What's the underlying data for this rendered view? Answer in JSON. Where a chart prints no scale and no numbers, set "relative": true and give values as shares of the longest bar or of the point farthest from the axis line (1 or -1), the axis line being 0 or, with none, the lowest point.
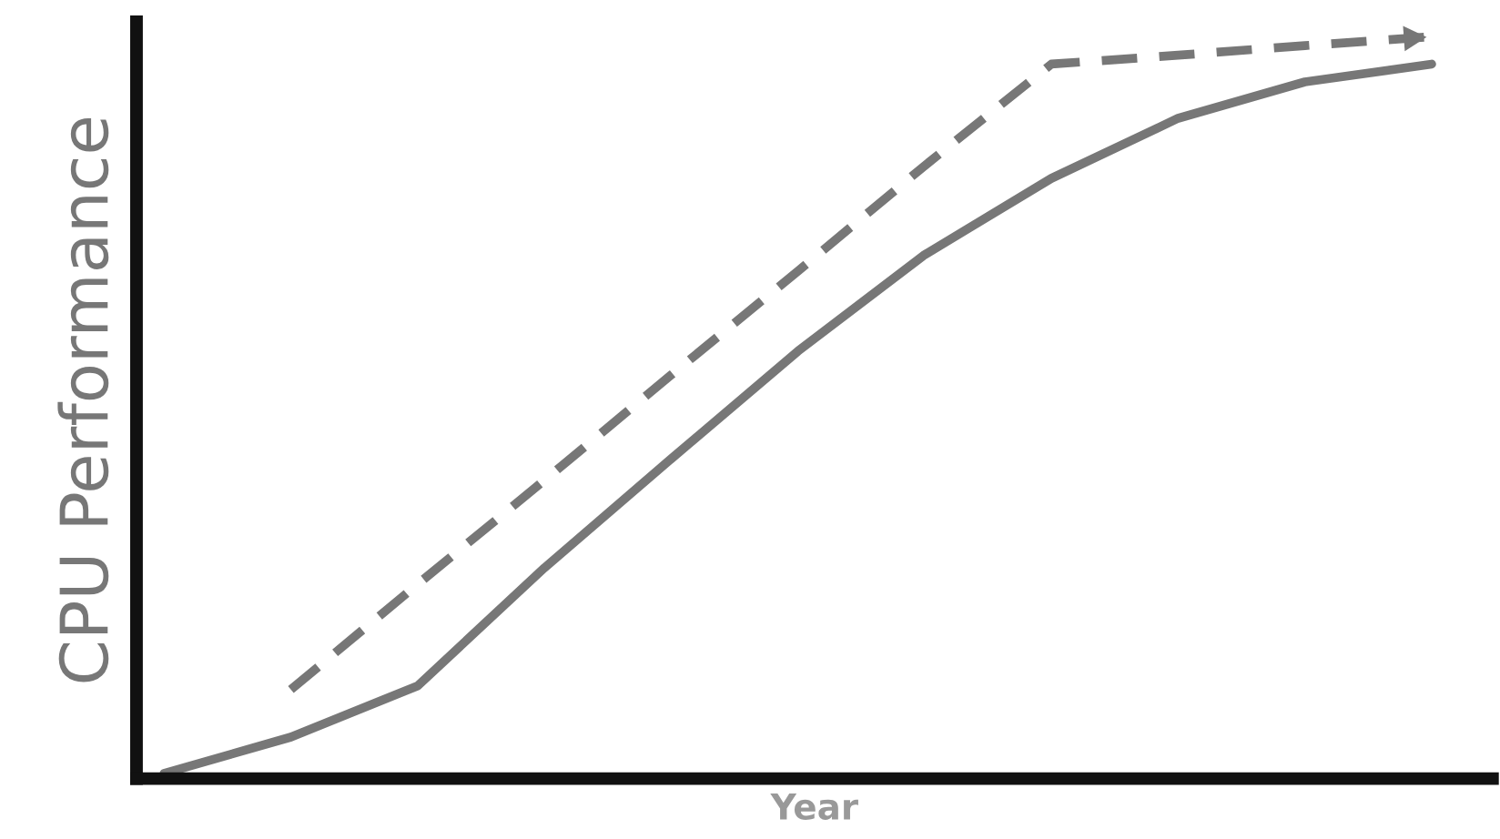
{
  "chart_data": {
    "type": "line",
    "relative": true,
    "xlabel": "Year",
    "ylabel": "CPU Performance",
    "categories": [
      null,
      null,
      null,
      null,
      null,
      null,
      null,
      null,
      null,
      null,
      null
    ],
    "series": [
      {
        "color": "#777777",
        "line_style": "solid",
        "values": [
          0.007,
          0.056,
          0.125,
          0.284,
          0.431,
          0.576,
          0.706,
          0.809,
          0.89,
          0.939,
          0.963
        ]
      },
      {
        "color": "#777777",
        "line_style": "dashed",
        "values": [
          null,
          0.12,
          0.262,
          0.402,
          0.544,
          0.684,
          0.826,
          0.963,
          0.975,
          0.988,
          1
        ]
      }
    ],
    "grid": false,
    "legend": false
  }
}
